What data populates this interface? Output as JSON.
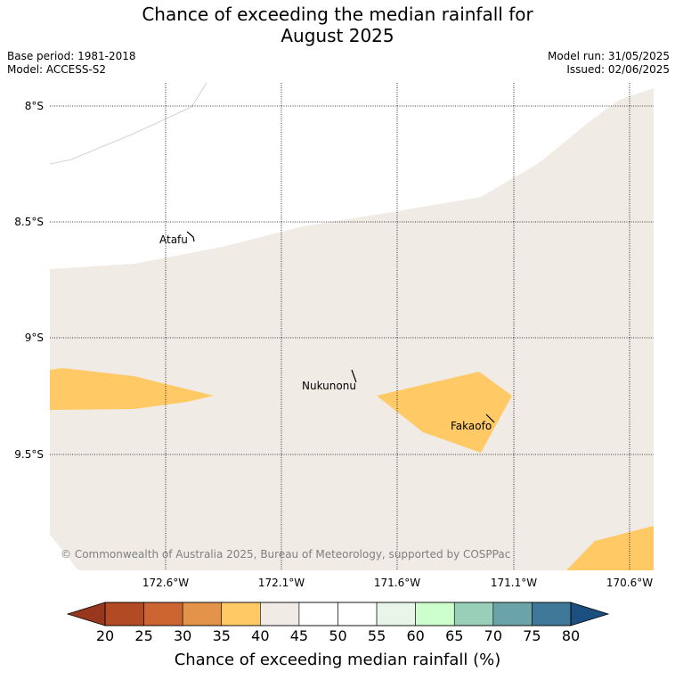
{
  "title_line1": "Chance of exceeding the median rainfall for",
  "title_line2": "August 2025",
  "base_period": "Base period: 1981-2018",
  "model": "Model: ACCESS-S2",
  "model_run": "Model run: 31/05/2025",
  "issued": "Issued: 02/06/2025",
  "lat_labels": [
    "8°S",
    "8.5°S",
    "9°S",
    "9.5°S"
  ],
  "lon_labels": [
    "172.6°W",
    "172.1°W",
    "171.6°W",
    "171.1°W",
    "170.6°W"
  ],
  "places": [
    "Atafu",
    "Nukunonu",
    "Fakaofo"
  ],
  "copyright": "© Commonwealth of Australia 2025, Bureau of Meteorology, supported by COSPPac",
  "colorbar": {
    "ticks": [
      "20",
      "25",
      "30",
      "35",
      "40",
      "45",
      "50",
      "55",
      "60",
      "65",
      "70",
      "75",
      "80"
    ],
    "colors": [
      "#b24a24",
      "#cd6533",
      "#e3944a",
      "#ffc966",
      "#f0ebe5",
      "#ffffff",
      "#ffffff",
      "#e8f5e8",
      "#ccffcc",
      "#99cfb8",
      "#6aa3a8",
      "#3f7899"
    ],
    "under_color": "#98371d",
    "over_color": "#1a4f80",
    "label": "Chance of exceeding median rainfall (%)"
  },
  "fill_colors": {
    "light": "#f0ebe5",
    "orange": "#ffc966"
  }
}
